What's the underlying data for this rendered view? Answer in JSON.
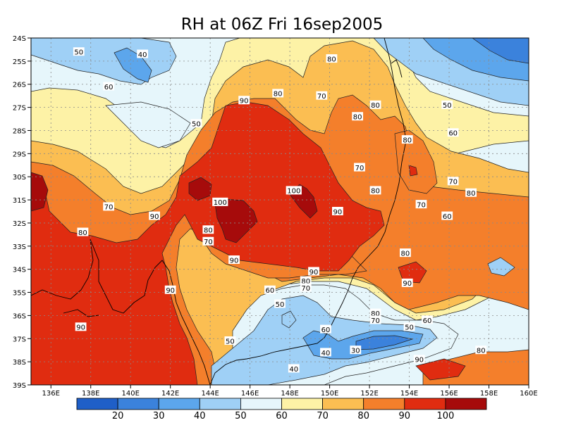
{
  "title": "RH at 06Z Fri 16sep2005",
  "lat_ticks": [
    "24S",
    "25S",
    "26S",
    "27S",
    "28S",
    "29S",
    "30S",
    "31S",
    "32S",
    "33S",
    "34S",
    "35S",
    "36S",
    "37S",
    "38S",
    "39S"
  ],
  "lon_ticks": [
    "136E",
    "138E",
    "140E",
    "142E",
    "144E",
    "146E",
    "148E",
    "150E",
    "152E",
    "154E",
    "156E",
    "158E",
    "160E"
  ],
  "colorbar": {
    "colors": [
      "#1f5fc8",
      "#3b82dc",
      "#5ca6ec",
      "#9fd0f6",
      "#e6f6fb",
      "#fdf2a6",
      "#fbbe52",
      "#f47f2b",
      "#e02c10",
      "#a60b0b"
    ],
    "labels": [
      "20",
      "30",
      "40",
      "50",
      "60",
      "70",
      "80",
      "90",
      "100"
    ]
  },
  "contour_labels": [
    {
      "text": "50",
      "lon": 137.4,
      "lat": -24.6
    },
    {
      "text": "40",
      "lon": 140.6,
      "lat": -24.7
    },
    {
      "text": "60",
      "lon": 138.9,
      "lat": -26.1
    },
    {
      "text": "50",
      "lon": 143.3,
      "lat": -27.7
    },
    {
      "text": "80",
      "lon": 150.1,
      "lat": -24.9
    },
    {
      "text": "80",
      "lon": 147.4,
      "lat": -26.4
    },
    {
      "text": "70",
      "lon": 149.6,
      "lat": -26.5
    },
    {
      "text": "90",
      "lon": 145.7,
      "lat": -26.7
    },
    {
      "text": "80",
      "lon": 152.3,
      "lat": -26.9
    },
    {
      "text": "50",
      "lon": 155.9,
      "lat": -26.9
    },
    {
      "text": "80",
      "lon": 151.4,
      "lat": -27.4
    },
    {
      "text": "60",
      "lon": 156.2,
      "lat": -28.1
    },
    {
      "text": "80",
      "lon": 153.9,
      "lat": -28.4
    },
    {
      "text": "70",
      "lon": 151.5,
      "lat": -29.6
    },
    {
      "text": "70",
      "lon": 156.2,
      "lat": -30.2
    },
    {
      "text": "100",
      "lon": 148.2,
      "lat": -30.6
    },
    {
      "text": "80",
      "lon": 152.3,
      "lat": -30.6
    },
    {
      "text": "80",
      "lon": 157.1,
      "lat": -30.7
    },
    {
      "text": "100",
      "lon": 144.5,
      "lat": -31.1
    },
    {
      "text": "70",
      "lon": 138.9,
      "lat": -31.3
    },
    {
      "text": "70",
      "lon": 154.6,
      "lat": -31.2
    },
    {
      "text": "90",
      "lon": 150.4,
      "lat": -31.5
    },
    {
      "text": "90",
      "lon": 141.2,
      "lat": -31.7
    },
    {
      "text": "60",
      "lon": 155.9,
      "lat": -31.7
    },
    {
      "text": "80",
      "lon": 143.9,
      "lat": -32.3
    },
    {
      "text": "80",
      "lon": 137.6,
      "lat": -32.4
    },
    {
      "text": "70",
      "lon": 143.9,
      "lat": -32.8
    },
    {
      "text": "80",
      "lon": 153.8,
      "lat": -33.3
    },
    {
      "text": "90",
      "lon": 145.2,
      "lat": -33.6
    },
    {
      "text": "90",
      "lon": 149.2,
      "lat": -34.1
    },
    {
      "text": "80",
      "lon": 148.8,
      "lat": -34.5
    },
    {
      "text": "90",
      "lon": 153.9,
      "lat": -34.6
    },
    {
      "text": "70",
      "lon": 148.8,
      "lat": -34.8
    },
    {
      "text": "60",
      "lon": 147.0,
      "lat": -34.9
    },
    {
      "text": "90",
      "lon": 142.0,
      "lat": -34.9
    },
    {
      "text": "50",
      "lon": 147.5,
      "lat": -35.5
    },
    {
      "text": "80",
      "lon": 152.3,
      "lat": -35.9
    },
    {
      "text": "60",
      "lon": 154.9,
      "lat": -36.2
    },
    {
      "text": "70",
      "lon": 152.3,
      "lat": -36.2
    },
    {
      "text": "50",
      "lon": 154.0,
      "lat": -36.5
    },
    {
      "text": "90",
      "lon": 137.5,
      "lat": -36.5
    },
    {
      "text": "60",
      "lon": 149.8,
      "lat": -36.6
    },
    {
      "text": "50",
      "lon": 145.0,
      "lat": -37.1
    },
    {
      "text": "80",
      "lon": 157.6,
      "lat": -37.5
    },
    {
      "text": "30",
      "lon": 151.3,
      "lat": -37.5
    },
    {
      "text": "40",
      "lon": 149.8,
      "lat": -37.6
    },
    {
      "text": "90",
      "lon": 154.5,
      "lat": -37.9
    },
    {
      "text": "40",
      "lon": 148.2,
      "lat": -38.3
    }
  ]
}
